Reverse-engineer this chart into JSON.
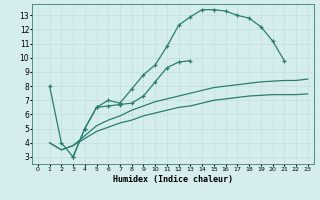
{
  "xlabel": "Humidex (Indice chaleur)",
  "background_color": "#d5eeed",
  "grid_color": "#c2dede",
  "line_color": "#2a7d70",
  "xlim": [
    -0.5,
    23.5
  ],
  "ylim": [
    2.5,
    13.8
  ],
  "xticks": [
    0,
    1,
    2,
    3,
    4,
    5,
    6,
    7,
    8,
    9,
    10,
    11,
    12,
    13,
    14,
    15,
    16,
    17,
    18,
    19,
    20,
    21,
    22,
    23
  ],
  "yticks": [
    3,
    4,
    5,
    6,
    7,
    8,
    9,
    10,
    11,
    12,
    13
  ],
  "line1_x": [
    1,
    2,
    3,
    4,
    5,
    6,
    7,
    8,
    9,
    10,
    11,
    12,
    13,
    14,
    15,
    16,
    17,
    18,
    19,
    20,
    21
  ],
  "line1_y": [
    8.0,
    4.0,
    3.0,
    5.0,
    6.5,
    7.0,
    6.8,
    7.8,
    8.8,
    9.5,
    10.8,
    12.3,
    12.9,
    13.4,
    13.4,
    13.3,
    13.0,
    12.8,
    12.2,
    11.2,
    9.8
  ],
  "line2_x": [
    3,
    4,
    5,
    6,
    7,
    8,
    9,
    10,
    11,
    12,
    13
  ],
  "line2_y": [
    3.0,
    5.0,
    6.5,
    6.6,
    6.7,
    6.8,
    7.3,
    8.3,
    9.3,
    9.7,
    9.8
  ],
  "line3_x": [
    1,
    2,
    3,
    4,
    5,
    6,
    7,
    8,
    9,
    10,
    11,
    12,
    13,
    14,
    15,
    16,
    17,
    18,
    19,
    20,
    21,
    22,
    23
  ],
  "line3_y": [
    4.0,
    3.5,
    3.8,
    4.5,
    5.2,
    5.6,
    5.9,
    6.3,
    6.6,
    6.9,
    7.1,
    7.3,
    7.5,
    7.7,
    7.9,
    8.0,
    8.1,
    8.2,
    8.3,
    8.35,
    8.4,
    8.4,
    8.5
  ],
  "line4_x": [
    1,
    2,
    3,
    4,
    5,
    6,
    7,
    8,
    9,
    10,
    11,
    12,
    13,
    14,
    15,
    16,
    17,
    18,
    19,
    20,
    21,
    22,
    23
  ],
  "line4_y": [
    4.0,
    3.5,
    3.8,
    4.3,
    4.8,
    5.1,
    5.4,
    5.6,
    5.9,
    6.1,
    6.3,
    6.5,
    6.6,
    6.8,
    7.0,
    7.1,
    7.2,
    7.3,
    7.35,
    7.4,
    7.4,
    7.4,
    7.45
  ]
}
